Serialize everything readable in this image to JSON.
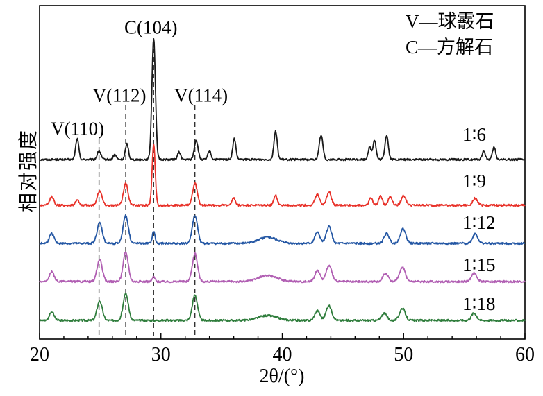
{
  "chart_data": {
    "type": "line",
    "title": "",
    "xlabel": "2θ/(°)",
    "ylabel": "相对强度",
    "xlim": [
      20,
      60
    ],
    "x_major_ticks": [
      20,
      30,
      40,
      50,
      60
    ],
    "x_minor_tick_step": 2,
    "y_ticks": [],
    "grid": false,
    "background": "#ffffff",
    "legend": {
      "position": "top-right",
      "entries": [
        "V—球霰石",
        "C—方解石"
      ]
    },
    "dashed_guides": [
      {
        "x": 24.9,
        "label": "V(110)"
      },
      {
        "x": 27.1,
        "label": "V(112)"
      },
      {
        "x": 29.4,
        "label": "C(104)"
      },
      {
        "x": 32.8,
        "label": "V(114)"
      }
    ],
    "peaks_format": "[two_theta_deg, relative_intensity_0_100, fwhm_deg]",
    "series": [
      {
        "name": "1∶6",
        "color": "#1a1a1a",
        "peaks": [
          [
            23.1,
            17,
            0.3
          ],
          [
            24.9,
            7,
            0.35
          ],
          [
            26.2,
            4,
            0.3
          ],
          [
            27.2,
            13,
            0.3
          ],
          [
            29.4,
            100,
            0.34
          ],
          [
            31.5,
            6,
            0.3
          ],
          [
            32.9,
            16,
            0.35
          ],
          [
            34.0,
            7,
            0.3
          ],
          [
            36.05,
            17,
            0.3
          ],
          [
            39.45,
            23,
            0.32
          ],
          [
            43.2,
            20,
            0.35
          ],
          [
            47.2,
            10,
            0.3
          ],
          [
            47.6,
            16,
            0.3
          ],
          [
            48.6,
            20,
            0.32
          ],
          [
            56.6,
            7,
            0.3
          ],
          [
            57.45,
            10,
            0.3
          ]
        ]
      },
      {
        "name": "1∶9",
        "color": "#e8322a",
        "peaks": [
          [
            21.0,
            7,
            0.4
          ],
          [
            23.1,
            5,
            0.3
          ],
          [
            24.95,
            12,
            0.45
          ],
          [
            27.1,
            18,
            0.45
          ],
          [
            29.4,
            50,
            0.3
          ],
          [
            32.8,
            18,
            0.45
          ],
          [
            36.0,
            6,
            0.3
          ],
          [
            39.45,
            8,
            0.35
          ],
          [
            42.9,
            9,
            0.45
          ],
          [
            43.85,
            11,
            0.45
          ],
          [
            47.3,
            6,
            0.35
          ],
          [
            48.1,
            8,
            0.35
          ],
          [
            48.9,
            7,
            0.4
          ],
          [
            50.0,
            8,
            0.45
          ],
          [
            55.9,
            6,
            0.45
          ]
        ]
      },
      {
        "name": "1∶12",
        "color": "#2457a4",
        "peaks": [
          [
            21.0,
            8,
            0.45
          ],
          [
            24.95,
            17,
            0.5
          ],
          [
            27.1,
            23,
            0.5
          ],
          [
            29.4,
            10,
            0.26
          ],
          [
            32.8,
            23,
            0.5
          ],
          [
            38.8,
            5,
            1.8
          ],
          [
            42.9,
            9,
            0.5
          ],
          [
            43.85,
            14,
            0.5
          ],
          [
            48.6,
            8,
            0.5
          ],
          [
            49.95,
            12,
            0.55
          ],
          [
            55.9,
            8,
            0.5
          ]
        ]
      },
      {
        "name": "1∶15",
        "color": "#b15fb3",
        "peaks": [
          [
            21.0,
            8,
            0.45
          ],
          [
            24.95,
            18,
            0.5
          ],
          [
            27.1,
            24,
            0.5
          ],
          [
            29.4,
            4,
            0.26
          ],
          [
            32.8,
            23,
            0.5
          ],
          [
            38.8,
            5,
            1.8
          ],
          [
            42.9,
            9,
            0.5
          ],
          [
            43.85,
            13,
            0.55
          ],
          [
            48.5,
            7,
            0.5
          ],
          [
            49.9,
            12,
            0.55
          ],
          [
            55.8,
            7,
            0.5
          ]
        ]
      },
      {
        "name": "1∶18",
        "color": "#2f7d3c",
        "peaks": [
          [
            21.0,
            7,
            0.45
          ],
          [
            24.95,
            16,
            0.5
          ],
          [
            27.1,
            22,
            0.5
          ],
          [
            32.8,
            21,
            0.5
          ],
          [
            38.8,
            4,
            1.8
          ],
          [
            42.9,
            8,
            0.5
          ],
          [
            43.85,
            12,
            0.55
          ],
          [
            48.4,
            6,
            0.5
          ],
          [
            49.9,
            10,
            0.55
          ],
          [
            55.8,
            6,
            0.5
          ]
        ]
      }
    ]
  }
}
